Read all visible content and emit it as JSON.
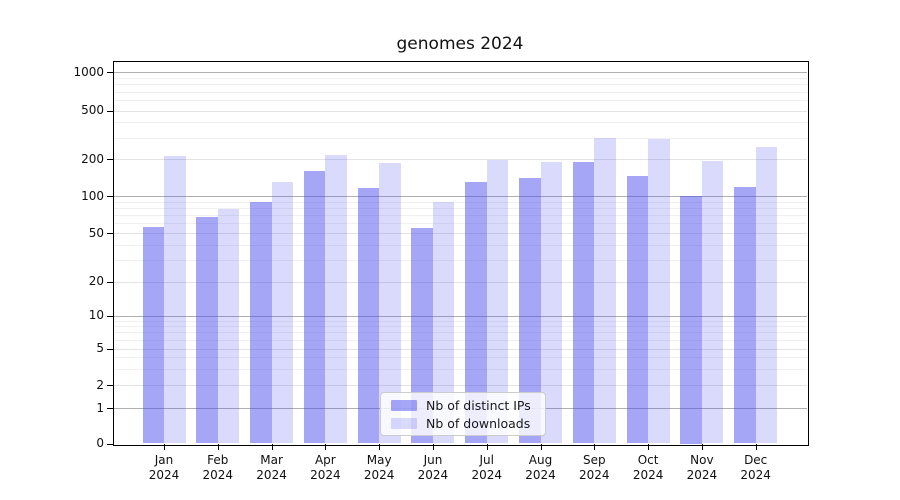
{
  "title": "genomes 2024",
  "legend": {
    "items": [
      {
        "label": "Nb of distinct IPs",
        "color": "rgba(68,68,238,0.48)",
        "color_hex": "#a5a5f6"
      },
      {
        "label": "Nb of downloads",
        "color": "rgba(68,68,238,0.20)",
        "color_hex": "#dadafa"
      }
    ]
  },
  "chart_data": {
    "type": "bar",
    "title": "genomes 2024",
    "categories": [
      "Jan",
      "Feb",
      "Mar",
      "Apr",
      "May",
      "Jun",
      "Jul",
      "Aug",
      "Sep",
      "Oct",
      "Nov",
      "Dec"
    ],
    "year": "2024",
    "series": [
      {
        "name": "Nb of distinct IPs",
        "color": "rgba(68,68,238,0.48)",
        "values": [
          56,
          67,
          89,
          160,
          117,
          55,
          130,
          139,
          188,
          146,
          100,
          118
        ]
      },
      {
        "name": "Nb of downloads",
        "color": "rgba(68,68,238,0.20)",
        "values": [
          210,
          78,
          130,
          215,
          186,
          90,
          195,
          190,
          295,
          290,
          193,
          250
        ]
      }
    ],
    "yaxis": {
      "ticks": [
        0,
        1,
        2,
        5,
        10,
        20,
        50,
        100,
        200,
        500,
        1000
      ],
      "scale": "symlog",
      "ylim": [
        0,
        1200
      ]
    },
    "xlabel": "",
    "ylabel": "",
    "grid": true,
    "minor_grid_values": [
      3,
      4,
      6,
      7,
      8,
      9,
      30,
      40,
      60,
      70,
      80,
      90,
      300,
      400,
      600,
      700,
      800,
      900
    ],
    "legend_position": "lower center inside"
  }
}
